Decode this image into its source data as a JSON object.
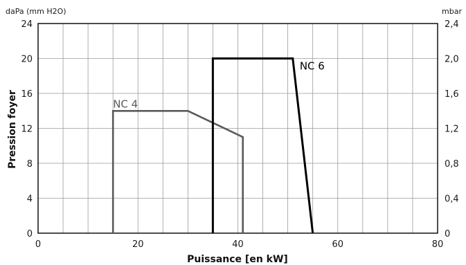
{
  "chart_data": {
    "type": "line",
    "xlabel": "Puissance [en kW]",
    "ylabel": "Pression foyer",
    "y_unit_left": "daPa (mm H2O)",
    "y_unit_right": "mbar",
    "xlim": [
      0,
      80
    ],
    "ylim": [
      0,
      24
    ],
    "x_ticks": [
      "0",
      "20",
      "40",
      "60",
      "80"
    ],
    "y_ticks_left": [
      "0",
      "4",
      "8",
      "12",
      "16",
      "20",
      "24"
    ],
    "y_ticks_right": [
      "0",
      "0,4",
      "0,8",
      "1,2",
      "1,6",
      "2,0",
      "2,4"
    ],
    "grid": true,
    "series": [
      {
        "name": "NC 4",
        "color": "#5a5a5a",
        "points": [
          [
            15,
            0
          ],
          [
            15,
            14
          ],
          [
            30,
            14
          ],
          [
            41,
            11
          ],
          [
            41,
            0
          ]
        ]
      },
      {
        "name": "NC 6",
        "color": "#000000",
        "points": [
          [
            35,
            0
          ],
          [
            35,
            20
          ],
          [
            51,
            20
          ],
          [
            55,
            0
          ]
        ]
      }
    ]
  }
}
